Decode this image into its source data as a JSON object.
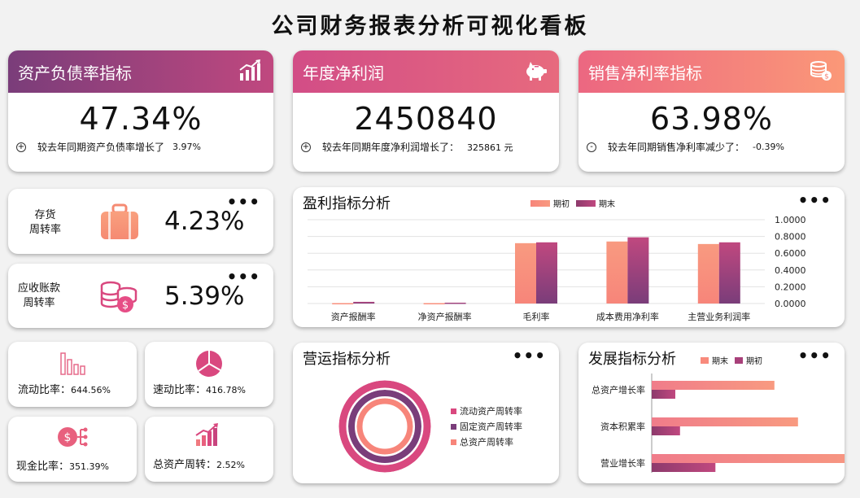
{
  "page_title": "公司财务报表分析可视化看板",
  "colors": {
    "head_purple": "#7a3d7a",
    "head_pink": "#e25a8a",
    "head_salmon": "#f7857a",
    "bar_salmon": "#f89a80",
    "bar_plum": "#8d3a6c"
  },
  "kpis": {
    "debt_ratio": {
      "title": "资产负债率指标",
      "icon": "growth-chart-icon",
      "value": "47.34%",
      "sign": "+",
      "note": "较去年同期资产负债率增长了",
      "change": "3.97%"
    },
    "net_profit": {
      "title": "年度净利润",
      "icon": "piggy-bank-icon",
      "value": "2450840",
      "sign": "+",
      "note": "较去年同期年度净利润增长了：",
      "change": "325861  元"
    },
    "net_margin": {
      "title": "销售净利率指标",
      "icon": "money-icon",
      "value": "63.98%",
      "sign": "-",
      "note": "较去年同期销售净利率减少了：",
      "change": "-0.39%"
    }
  },
  "turnover": {
    "inventory": {
      "label_line1": "存货",
      "label_line2": "周转率",
      "value": "4.23%",
      "icon": "briefcase-icon"
    },
    "receivable": {
      "label_line1": "应收账款",
      "label_line2": "周转率",
      "value": "5.39%",
      "icon": "coins-icon"
    }
  },
  "ratios": {
    "current": {
      "label": "流动比率：",
      "value": "644.56%",
      "icon": "bar-chart-icon"
    },
    "quick": {
      "label": "速动比率：",
      "value": "416.78%",
      "icon": "pie-chart-icon"
    },
    "cash": {
      "label": "现金比率：",
      "value": "351.39%",
      "icon": "cash-network-icon"
    },
    "asset_turn": {
      "label": "总资产周转：",
      "value": "2.52%",
      "icon": "growth-bars-icon"
    }
  },
  "menu_glyph": "•••",
  "chart_data": [
    {
      "type": "bar",
      "title": "盈利指标分析",
      "categories": [
        "资产报酬率",
        "净资产报酬率",
        "毛利率",
        "成本费用净利率",
        "主营业务利润率"
      ],
      "series": [
        {
          "name": "期初",
          "values": [
            0.005,
            0.005,
            0.72,
            0.74,
            0.71
          ]
        },
        {
          "name": "期末",
          "values": [
            0.02,
            0.01,
            0.73,
            0.79,
            0.73
          ]
        }
      ],
      "ylim": [
        0,
        1
      ],
      "yticks": [
        "1.0000",
        "0.8000",
        "0.6000",
        "0.4000",
        "0.2000",
        "0.0000"
      ],
      "legend": "top-center",
      "grid": true
    },
    {
      "type": "pie",
      "subtype": "donut",
      "title": "营运指标分析",
      "series": [
        {
          "name": "流动资产周转率",
          "values": [
            1
          ]
        },
        {
          "name": "固定资产周转率",
          "values": [
            1
          ]
        },
        {
          "name": "总资产周转率",
          "values": [
            1
          ]
        }
      ],
      "legend": "right"
    },
    {
      "type": "bar",
      "orientation": "horizontal",
      "title": "发展指标分析",
      "categories": [
        "总资产增长率",
        "资本积累率",
        "营业增长率"
      ],
      "series": [
        {
          "name": "期末",
          "values": [
            0.52,
            0.62,
            0.96
          ]
        },
        {
          "name": "期初",
          "values": [
            0.1,
            0.12,
            0.27
          ]
        }
      ],
      "legend": "top-center"
    }
  ]
}
